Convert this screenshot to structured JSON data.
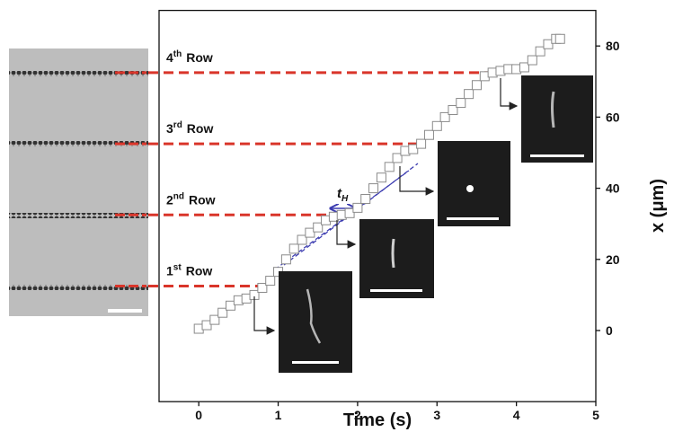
{
  "chart_data": {
    "type": "scatter",
    "x_label": "Time (s)",
    "y_label": "x (μm)",
    "xlim": [
      -0.5,
      5
    ],
    "ylim": [
      -20,
      90
    ],
    "xticks": [
      0,
      1,
      2,
      3,
      4,
      5
    ],
    "yticks": [
      0,
      20,
      40,
      60,
      80
    ],
    "marker_color": "#8a8a8a",
    "row_line_color": "#d9352a",
    "x": [
      0,
      0.1,
      0.2,
      0.3,
      0.4,
      0.5,
      0.6,
      0.7,
      0.8,
      0.9,
      1.0,
      1.1,
      1.2,
      1.3,
      1.4,
      1.5,
      1.6,
      1.7,
      1.8,
      1.9,
      2.0,
      2.1,
      2.2,
      2.3,
      2.4,
      2.5,
      2.6,
      2.7,
      2.8,
      2.9,
      3.0,
      3.1,
      3.2,
      3.3,
      3.4,
      3.5,
      3.6,
      3.7,
      3.8,
      3.9,
      4.0,
      4.1,
      4.2,
      4.3,
      4.4,
      4.5,
      4.55
    ],
    "y": [
      0.5,
      1.5,
      3,
      5,
      7,
      8.5,
      9,
      10,
      12,
      14,
      16.5,
      20,
      23,
      25.5,
      27.5,
      29,
      31,
      32,
      32.5,
      33,
      34.5,
      37,
      40,
      43,
      46,
      48.5,
      50.5,
      51,
      52.5,
      55,
      57.5,
      60,
      62,
      64,
      66.5,
      69,
      71.5,
      72.5,
      73,
      73.5,
      73.5,
      74,
      76,
      78.5,
      80.5,
      82,
      82
    ],
    "rows": [
      {
        "number": "1",
        "suffix": "st",
        "word": "Row",
        "value": 12.5
      },
      {
        "number": "2",
        "suffix": "nd",
        "word": "Row",
        "value": 32.5
      },
      {
        "number": "3",
        "suffix": "rd",
        "word": "Row",
        "value": 52.5
      },
      {
        "number": "4",
        "suffix": "th",
        "word": "Row",
        "value": 72.5
      }
    ],
    "annotation": {
      "text": "t",
      "subscript": "H"
    }
  }
}
